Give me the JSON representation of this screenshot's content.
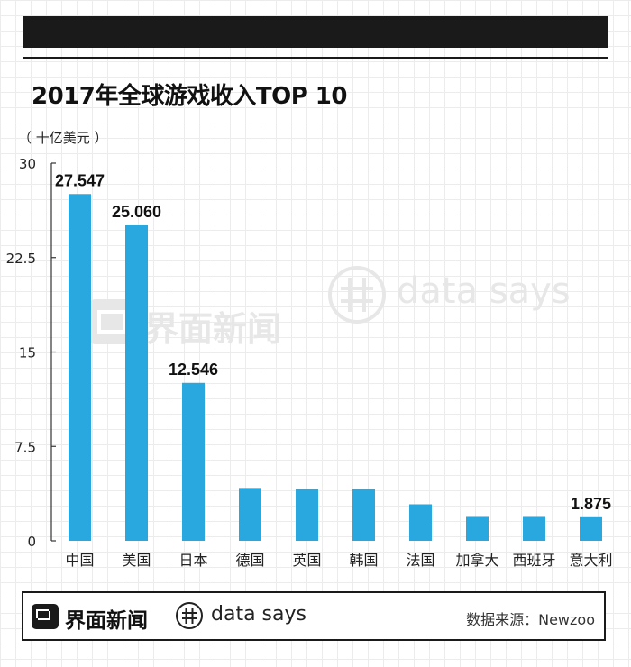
{
  "title": "2017年全球游戏收入TOP 10",
  "unit_label": "（ 十亿美元 ）",
  "chart_data": {
    "type": "bar",
    "title": "2017年全球游戏收入TOP 10",
    "ylabel": "（ 十亿美元 ）",
    "xlabel": "",
    "ylim": [
      0,
      30
    ],
    "yticks": [
      0,
      7.5,
      15,
      22.5,
      30
    ],
    "ytick_labels": [
      "0",
      "7.5",
      "15",
      "22.5",
      "30"
    ],
    "categories": [
      "中国",
      "美国",
      "日本",
      "德国",
      "英国",
      "韩国",
      "法国",
      "加拿大",
      "西班牙",
      "意大利"
    ],
    "values": [
      27.547,
      25.06,
      12.546,
      4.2,
      4.1,
      4.1,
      2.9,
      1.9,
      1.9,
      1.875
    ],
    "data_labels": {
      "0": "27.547",
      "1": "25.060",
      "2": "12.546",
      "9": "1.875"
    },
    "bar_color": "#29a8e0"
  },
  "watermark": {
    "brand": "界面新闻",
    "tagline": "data says"
  },
  "footer": {
    "brand": "界面新闻",
    "tagline": "data says",
    "source": "数据来源：Newzoo"
  }
}
